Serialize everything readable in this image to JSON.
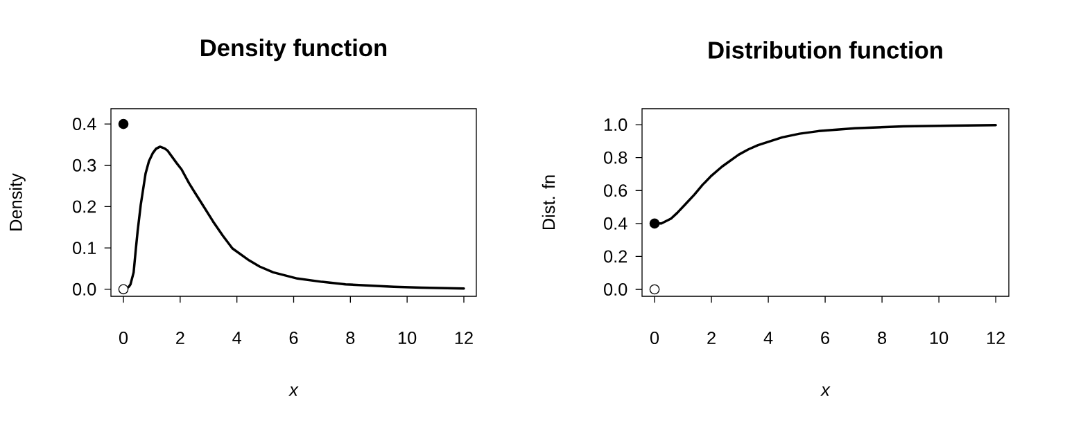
{
  "chart_data": [
    {
      "type": "line",
      "title": "Density function",
      "xlabel": "x",
      "ylabel": "Density",
      "xlim": [
        -0.44,
        12.44
      ],
      "ylim": [
        -0.017,
        0.437
      ],
      "xticks": [
        0,
        2,
        4,
        6,
        8,
        10,
        12
      ],
      "yticks": [
        {
          "value": 0,
          "label": "0.0"
        },
        {
          "value": 0.1,
          "label": "0.1"
        },
        {
          "value": 0.2,
          "label": "0.2"
        },
        {
          "value": 0.3,
          "label": "0.3"
        },
        {
          "value": 0.4,
          "label": "0.4"
        }
      ],
      "series": [
        {
          "type": "line",
          "color": "#000000",
          "x": [
            0,
            0.1,
            0.19,
            0.25,
            0.36,
            0.44,
            0.5,
            0.61,
            0.78,
            0.9,
            1.04,
            1.15,
            1.29,
            1.45,
            1.55,
            1.89,
            2.05,
            2.31,
            2.5,
            2.74,
            3.16,
            3.5,
            3.84,
            4.43,
            4.8,
            5.28,
            6.13,
            7.0,
            7.83,
            9.53,
            10.5,
            12.0
          ],
          "values": [
            0,
            0.001,
            0.006,
            0.012,
            0.041,
            0.099,
            0.14,
            0.204,
            0.28,
            0.31,
            0.33,
            0.34,
            0.345,
            0.341,
            0.336,
            0.304,
            0.29,
            0.257,
            0.236,
            0.21,
            0.164,
            0.13,
            0.099,
            0.07,
            0.055,
            0.041,
            0.026,
            0.018,
            0.012,
            0.006,
            0.004,
            0.002
          ]
        },
        {
          "type": "scatter",
          "color": "#000000",
          "x": [
            0
          ],
          "values": [
            0.4
          ]
        },
        {
          "type": "scatter",
          "color": "#ffffff",
          "x": [
            0
          ],
          "values": [
            0
          ]
        }
      ]
    },
    {
      "type": "line",
      "title": "Distribution function",
      "xlabel": "x",
      "ylabel": "Dist. fn",
      "xlim": [
        -0.44,
        12.46
      ],
      "ylim": [
        -0.042,
        1.097
      ],
      "xticks": [
        0,
        2,
        4,
        6,
        8,
        10,
        12
      ],
      "yticks": [
        {
          "value": 0,
          "label": "0.0"
        },
        {
          "value": 0.2,
          "label": "0.2"
        },
        {
          "value": 0.4,
          "label": "0.4"
        },
        {
          "value": 0.6,
          "label": "0.6"
        },
        {
          "value": 0.8,
          "label": "0.8"
        },
        {
          "value": 1.0,
          "label": "1.0"
        }
      ],
      "series": [
        {
          "type": "line",
          "color": "#000000",
          "x": [
            0,
            0.24,
            0.58,
            0.8,
            1.09,
            1.4,
            1.69,
            2.0,
            2.37,
            2.96,
            3.3,
            3.64,
            4.49,
            5.1,
            5.77,
            7.05,
            8.75,
            10.45,
            12.0
          ],
          "values": [
            0.4,
            0.4,
            0.43,
            0.465,
            0.518,
            0.575,
            0.635,
            0.69,
            0.745,
            0.818,
            0.85,
            0.876,
            0.923,
            0.945,
            0.961,
            0.978,
            0.99,
            0.994,
            0.997
          ]
        },
        {
          "type": "scatter",
          "color": "#000000",
          "x": [
            0
          ],
          "values": [
            0.4
          ]
        },
        {
          "type": "scatter",
          "color": "#ffffff",
          "x": [
            0
          ],
          "values": [
            0
          ]
        }
      ]
    }
  ]
}
